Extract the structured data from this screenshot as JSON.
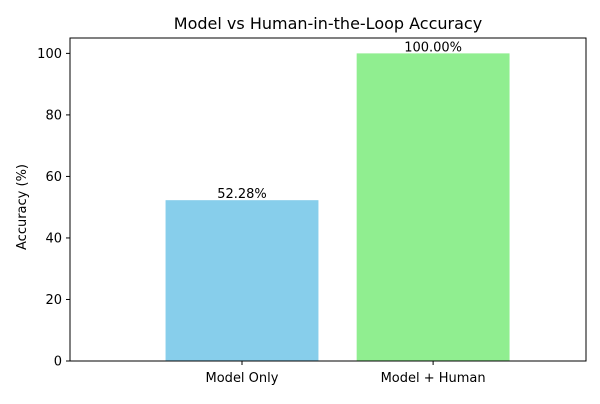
{
  "chart_data": {
    "type": "bar",
    "title": "Model vs Human-in-the-Loop Accuracy",
    "xlabel": "",
    "ylabel": "Accuracy (%)",
    "categories": [
      "Model Only",
      "Model + Human"
    ],
    "values": [
      52.28,
      100.0
    ],
    "data_labels": [
      "52.28%",
      "100.00%"
    ],
    "colors": [
      "#87ceeb",
      "#90ee90"
    ],
    "ylim": [
      0,
      105
    ],
    "yticks": [
      0,
      20,
      40,
      60,
      80,
      100
    ],
    "grid": false,
    "legend": "none"
  }
}
